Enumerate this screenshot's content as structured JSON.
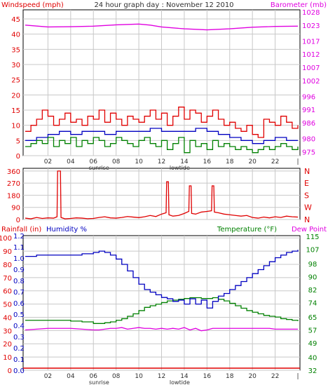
{
  "title": "24 hour graph day : November 12 2010",
  "colors": {
    "red": "#e00000",
    "magenta": "#e000e0",
    "blue": "#0000c0",
    "green": "#008000",
    "grid": "#c8c8c8",
    "dark": "#303030"
  },
  "x_ticks": [
    "02",
    "04",
    "06",
    "08",
    "10",
    "12",
    "14",
    "16",
    "18",
    "20",
    "22"
  ],
  "x_tick_hours": [
    2,
    4,
    6,
    8,
    10,
    12,
    14,
    16,
    18,
    20,
    22
  ],
  "x_end_label": "|",
  "sunrise_label": "sunrise",
  "sunrise_hour": 6.5,
  "lowtide_label": "lowtide",
  "lowtide_hour": 13.6,
  "chart_data": [
    {
      "type": "line",
      "id": "wind-baro",
      "left_axis_label": "Windspeed (mph)",
      "right_axis_label": "Barometer (mb)",
      "x_range": [
        0,
        24
      ],
      "left_ticks": [
        "0",
        "5",
        "10",
        "15",
        "20",
        "25",
        "30",
        "35",
        "40",
        "45"
      ],
      "left_tick_values": [
        0,
        5,
        10,
        15,
        20,
        25,
        30,
        35,
        40,
        45
      ],
      "left_range": [
        0,
        48
      ],
      "right_ticks": [
        "975",
        "980",
        "986",
        "991",
        "996",
        "1002",
        "1007",
        "1012",
        "1017",
        "1023",
        "1028"
      ],
      "right_tick_values": [
        975,
        980,
        986,
        991,
        996,
        1002,
        1007,
        1012,
        1017,
        1023,
        1028
      ],
      "right_range": [
        973.5,
        1028.8
      ],
      "series": [
        {
          "axis": "right",
          "color": "#e000e0",
          "x": [
            0,
            2,
            4,
            6,
            8,
            10,
            11,
            12,
            14,
            16,
            18,
            20,
            22,
            24
          ],
          "y": [
            1023,
            1022.3,
            1022.4,
            1022.6,
            1023.1,
            1023.4,
            1023.0,
            1022.3,
            1021.6,
            1021.2,
            1021.6,
            1022.2,
            1022.5,
            1022.6
          ]
        },
        {
          "axis": "left",
          "color": "#e00000",
          "x": [
            0,
            0.5,
            1,
            1.5,
            2,
            2.5,
            3,
            3.5,
            4,
            4.5,
            5,
            5.5,
            6,
            6.5,
            7,
            7.5,
            8,
            8.5,
            9,
            9.5,
            10,
            10.5,
            11,
            11.5,
            12,
            12.5,
            13,
            13.5,
            14,
            14.5,
            15,
            15.5,
            16,
            16.5,
            17,
            17.5,
            18,
            18.5,
            19,
            19.5,
            20,
            20.5,
            21,
            21.5,
            22,
            22.5,
            23,
            23.5,
            24
          ],
          "y": [
            8,
            10,
            12,
            15,
            13,
            10,
            12,
            14,
            11,
            12,
            10,
            13,
            12,
            15,
            11,
            14,
            12,
            10,
            13,
            12,
            11,
            13,
            15,
            12,
            14,
            10,
            13,
            16,
            12,
            15,
            14,
            11,
            13,
            15,
            12,
            10,
            11,
            9,
            8,
            10,
            7,
            6,
            12,
            11,
            10,
            13,
            11,
            9,
            10
          ]
        },
        {
          "axis": "left",
          "color": "#0000c0",
          "x": [
            0,
            1,
            2,
            3,
            4,
            5,
            6,
            7,
            8,
            9,
            10,
            11,
            12,
            13,
            14,
            15,
            16,
            17,
            18,
            19,
            20,
            21,
            22,
            23,
            24
          ],
          "y": [
            5,
            6,
            7,
            8,
            7,
            8,
            8,
            7,
            8,
            8,
            8,
            9,
            8,
            8,
            8,
            9,
            8,
            7,
            6,
            5,
            4,
            5,
            6,
            5,
            5
          ]
        },
        {
          "axis": "left",
          "color": "#008000",
          "x": [
            0,
            0.5,
            1,
            1.5,
            2,
            2.5,
            3,
            3.5,
            4,
            4.5,
            5,
            5.5,
            6,
            6.5,
            7,
            7.5,
            8,
            8.5,
            9,
            9.5,
            10,
            10.5,
            11,
            11.5,
            12,
            12.5,
            13,
            13.5,
            14,
            14.5,
            15,
            15.5,
            16,
            16.5,
            17,
            17.5,
            18,
            18.5,
            19,
            19.5,
            20,
            20.5,
            21,
            21.5,
            22,
            22.5,
            23,
            23.5,
            24
          ],
          "y": [
            3,
            4,
            5,
            4,
            6,
            3,
            5,
            4,
            6,
            3,
            5,
            4,
            6,
            5,
            3,
            4,
            6,
            5,
            4,
            3,
            5,
            6,
            4,
            3,
            5,
            2,
            4,
            6,
            1,
            5,
            3,
            4,
            2,
            5,
            3,
            4,
            3,
            2,
            3,
            2,
            1,
            2,
            3,
            2,
            3,
            4,
            3,
            2,
            3
          ]
        }
      ]
    },
    {
      "type": "line",
      "id": "wind-direction",
      "x_range": [
        0,
        24
      ],
      "left_ticks": [
        "0",
        "90",
        "180",
        "270",
        "360"
      ],
      "left_tick_values": [
        0,
        90,
        180,
        270,
        360
      ],
      "left_range": [
        0,
        380
      ],
      "right_ticks": [
        "N",
        "E",
        "S",
        "W",
        "N"
      ],
      "series": [
        {
          "color": "#e00000",
          "x": [
            0,
            0.5,
            1,
            1.5,
            2,
            2.5,
            2.8,
            2.85,
            3.1,
            3.15,
            3.5,
            4,
            4.5,
            5,
            5.5,
            6,
            6.5,
            7,
            7.5,
            8,
            8.5,
            9,
            9.5,
            10,
            10.5,
            11,
            11.5,
            12,
            12.4,
            12.45,
            12.6,
            12.65,
            13,
            13.5,
            14,
            14.4,
            14.45,
            14.6,
            14.65,
            15,
            15.5,
            16,
            16.4,
            16.45,
            16.6,
            16.65,
            17,
            17.5,
            18,
            18.5,
            19,
            19.5,
            20,
            20.5,
            21,
            21.5,
            22,
            22.5,
            23,
            23.5,
            24
          ],
          "y": [
            10,
            5,
            15,
            8,
            12,
            10,
            20,
            360,
            360,
            15,
            5,
            8,
            12,
            10,
            6,
            8,
            15,
            20,
            12,
            10,
            15,
            22,
            18,
            14,
            20,
            30,
            22,
            40,
            50,
            280,
            280,
            35,
            25,
            30,
            45,
            60,
            250,
            250,
            45,
            40,
            55,
            60,
            65,
            250,
            250,
            55,
            50,
            40,
            35,
            30,
            25,
            30,
            15,
            10,
            18,
            12,
            20,
            15,
            25,
            20,
            18
          ]
        }
      ]
    },
    {
      "type": "line",
      "id": "rain-hum-temp",
      "left_axis_label_1": "Rainfall (in)",
      "left_axis_label_2": "Humidity %",
      "right_axis_label_1": "Temperature (°F)",
      "right_axis_label_2": "Dew Point",
      "x_range": [
        0,
        24
      ],
      "hum_ticks": [
        "0",
        "10",
        "20",
        "30",
        "40",
        "50",
        "60",
        "70",
        "80",
        "90",
        "100"
      ],
      "hum_tick_values": [
        0,
        10,
        20,
        30,
        40,
        50,
        60,
        70,
        80,
        90,
        100
      ],
      "rain_ticks": [
        "0.0",
        "0.1",
        "0.2",
        "0.3",
        "0.4",
        "0.5",
        "0.6",
        "0.7",
        "0.8",
        "0.9",
        "1.0",
        "1.1",
        "1.2"
      ],
      "rain_tick_values": [
        0,
        0.1,
        0.2,
        0.3,
        0.4,
        0.5,
        0.6,
        0.7,
        0.8,
        0.9,
        1.0,
        1.1,
        1.2
      ],
      "temp_ticks": [
        "32",
        "40",
        "49",
        "57",
        "65",
        "74",
        "82",
        "90",
        "98",
        "107",
        "115"
      ],
      "temp_tick_values": [
        32,
        40,
        49,
        57,
        65,
        74,
        82,
        90,
        98,
        107,
        115
      ],
      "hum_range": [
        0,
        101.7
      ],
      "temp_range": [
        32,
        115.5
      ],
      "series": [
        {
          "name": "Humidity",
          "axis": "hum",
          "color": "#0000c0",
          "x": [
            0,
            1,
            2,
            3,
            4,
            5,
            6,
            6.5,
            7,
            7.5,
            8,
            8.5,
            9,
            9.5,
            10,
            10.5,
            11,
            11.5,
            12,
            12.5,
            13,
            13.5,
            14,
            14.5,
            15,
            15.5,
            16,
            16.5,
            17,
            17.5,
            18,
            18.5,
            19,
            19.5,
            20,
            20.5,
            21,
            21.5,
            22,
            22.5,
            23,
            23.5,
            24
          ],
          "y": [
            86,
            87,
            87,
            87,
            87,
            88,
            89,
            90,
            89,
            87,
            84,
            80,
            75,
            70,
            65,
            61,
            59,
            57,
            55,
            54,
            52,
            53,
            50,
            54,
            50,
            53,
            47,
            52,
            56,
            58,
            61,
            64,
            67,
            70,
            73,
            76,
            79,
            82,
            85,
            87,
            89,
            90,
            91
          ]
        },
        {
          "name": "Temperature",
          "axis": "temp",
          "color": "#008000",
          "x": [
            0,
            1,
            2,
            3,
            4,
            5,
            6,
            6.5,
            7,
            7.5,
            8,
            8.5,
            9,
            9.5,
            10,
            10.5,
            11,
            11.5,
            12,
            12.5,
            13,
            13.5,
            14,
            14.5,
            15,
            15.5,
            16,
            16.5,
            17,
            17.5,
            18,
            18.5,
            19,
            19.5,
            20,
            20.5,
            21,
            21.5,
            22,
            22.5,
            23,
            23.5,
            24
          ],
          "y": [
            63,
            63,
            63,
            63,
            62.5,
            62,
            61,
            61,
            61.5,
            62,
            63,
            64,
            65.5,
            67,
            69,
            71,
            72,
            73,
            74,
            75,
            75.5,
            76,
            76.5,
            77,
            77,
            76.5,
            76.5,
            77,
            76,
            75,
            73.5,
            72,
            70.5,
            69,
            68,
            67,
            66,
            65.5,
            65,
            64,
            63.5,
            63,
            62.5
          ]
        },
        {
          "name": "Dew Point",
          "axis": "temp",
          "color": "#e000e0",
          "x": [
            0,
            1,
            2,
            3,
            4,
            5,
            6,
            6.5,
            7,
            7.5,
            8,
            8.5,
            9,
            9.5,
            10,
            10.5,
            11,
            11.5,
            12,
            12.5,
            13,
            13.5,
            14,
            14.5,
            15,
            15.5,
            16,
            16.5,
            17,
            17.5,
            18,
            18.5,
            19,
            19.5,
            20,
            20.5,
            21,
            21.5,
            22,
            22.5,
            23,
            23.5,
            24
          ],
          "y": [
            57,
            57.5,
            58,
            58,
            58,
            57.5,
            57,
            57,
            57.5,
            58,
            58,
            58.5,
            57.5,
            58,
            58.5,
            58,
            58,
            57.5,
            58,
            57.5,
            58,
            57.5,
            58.5,
            57,
            58,
            56.5,
            57,
            58,
            58,
            58,
            58,
            58,
            58,
            58,
            58,
            58,
            58,
            58,
            57.5,
            57.5,
            57.5,
            57.5,
            57.5
          ]
        },
        {
          "name": "Rainfall",
          "axis": "rain",
          "color": "#e00000",
          "x": [
            0,
            24
          ],
          "y": [
            0,
            0
          ]
        }
      ]
    }
  ]
}
